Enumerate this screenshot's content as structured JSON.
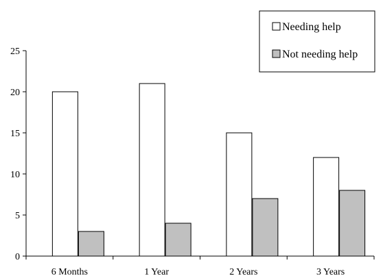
{
  "chart_data": {
    "type": "bar",
    "categories": [
      "6 Months",
      "1 Year",
      "2 Years",
      "3 Years"
    ],
    "series": [
      {
        "name": "Needing help",
        "values": [
          20,
          21,
          15,
          12
        ],
        "color": "#ffffff"
      },
      {
        "name": "Not needing help",
        "values": [
          3,
          4,
          7,
          8
        ],
        "color": "#c0c0c0"
      }
    ],
    "ylim": [
      0,
      25
    ],
    "yticks": [
      0,
      5,
      10,
      15,
      20,
      25
    ],
    "grid": false,
    "legend_position": "top-right",
    "title": "",
    "xlabel": "",
    "ylabel": ""
  }
}
